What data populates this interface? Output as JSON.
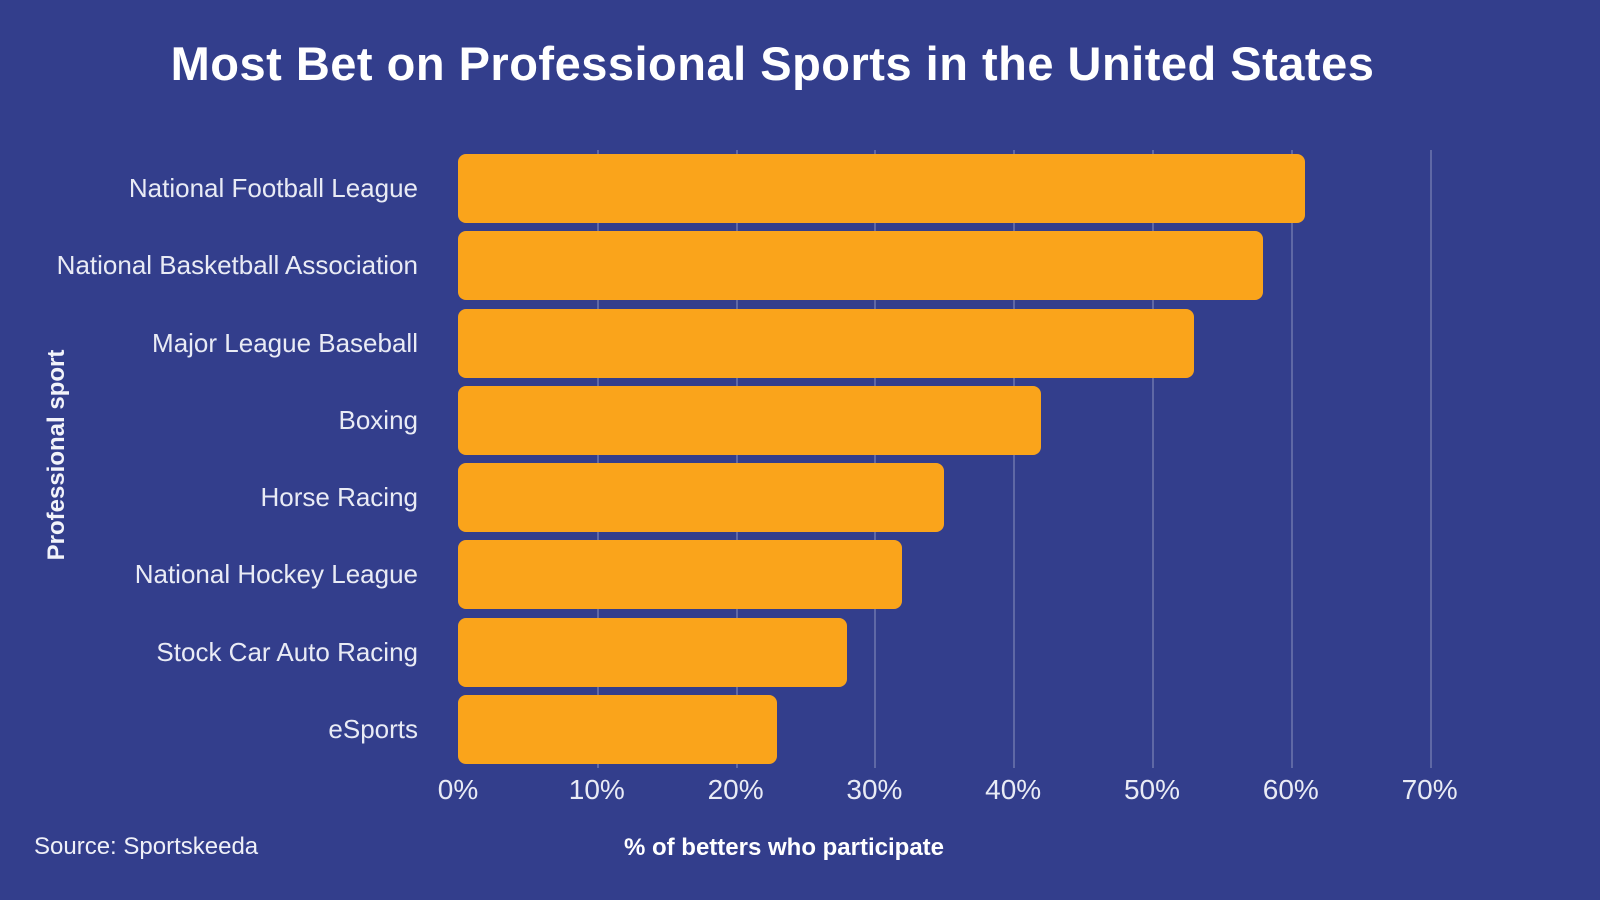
{
  "title": "Most Bet on Professional Sports in the United States",
  "source": "Source: Sportskeeda",
  "chart_data": {
    "type": "bar",
    "orientation": "horizontal",
    "title": "Most Bet on Professional Sports in the United States",
    "xlabel": "% of betters who participate",
    "ylabel": "Professional sport",
    "categories": [
      "National Football League",
      "National Basketball Association",
      "Major League Baseball",
      "Boxing",
      "Horse Racing",
      "National Hockey League",
      "Stock Car Auto Racing",
      "eSports"
    ],
    "values": [
      61,
      58,
      53,
      42,
      35,
      32,
      28,
      23
    ],
    "value_unit": "%",
    "xlim": [
      0,
      75
    ],
    "xtick_values": [
      0,
      10,
      20,
      30,
      40,
      50,
      60,
      70
    ],
    "xtick_labels": [
      "0%",
      "10%",
      "20%",
      "30%",
      "40%",
      "50%",
      "60%",
      "70%"
    ],
    "grid": true,
    "legend": false,
    "colors": {
      "background": "#333E8C",
      "bar": "#FAA41B",
      "text": "#FFFFFF",
      "tick_text": "#E9EBF5",
      "gridline": "rgba(255,255,255,0.22)"
    }
  }
}
